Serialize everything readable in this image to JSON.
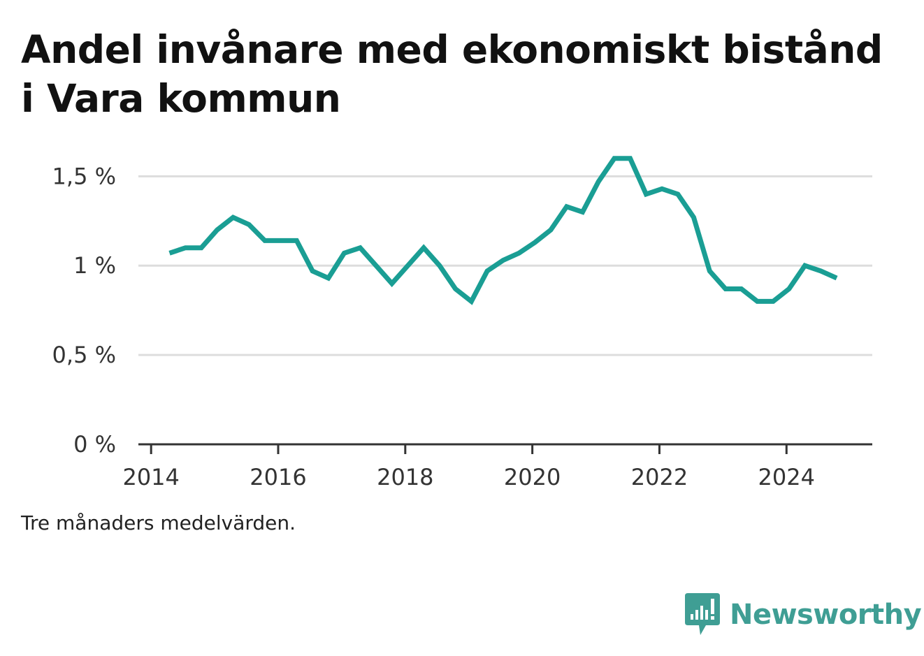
{
  "title": "Andel invånare med ekonomiskt bistånd i Vara kommun",
  "note": "Tre månaders medelvärden.",
  "brand": {
    "name": "Newsworthy",
    "logo_icon": "bar-chart-speech-bubble-icon"
  },
  "colors": {
    "line": "#1a9e94",
    "grid": "#dddddd",
    "axis": "#333333",
    "text": "#333333",
    "brand": "#3f9e94"
  },
  "chart_data": {
    "type": "line",
    "title": "Andel invånare med ekonomiskt bistånd i Vara kommun",
    "xlabel": "",
    "ylabel": "",
    "x_ticks": [
      {
        "value": 2014,
        "label": "2014"
      },
      {
        "value": 2016,
        "label": "2016"
      },
      {
        "value": 2018,
        "label": "2018"
      },
      {
        "value": 2020,
        "label": "2020"
      },
      {
        "value": 2022,
        "label": "2022"
      },
      {
        "value": 2024,
        "label": "2024"
      }
    ],
    "y_ticks": [
      {
        "value": 0,
        "label": "0 %"
      },
      {
        "value": 0.5,
        "label": "0,5 %"
      },
      {
        "value": 1,
        "label": "1 %"
      },
      {
        "value": 1.5,
        "label": "1,5 %"
      }
    ],
    "xlim": [
      2013.8,
      2025.35
    ],
    "ylim": [
      0,
      1.65
    ],
    "grid": true,
    "series": [
      {
        "x": [
          2014.29,
          2014.54,
          2014.79,
          2015.04,
          2015.29,
          2015.54,
          2015.79,
          2016.04,
          2016.29,
          2016.54,
          2016.79,
          2017.04,
          2017.29,
          2017.54,
          2017.79,
          2018.04,
          2018.29,
          2018.54,
          2018.79,
          2019.04,
          2019.29,
          2019.54,
          2019.79,
          2020.04,
          2020.29,
          2020.54,
          2020.79,
          2021.04,
          2021.29,
          2021.54,
          2021.79,
          2022.04,
          2022.29,
          2022.54,
          2022.79,
          2023.04,
          2023.29,
          2023.54,
          2023.79,
          2024.04,
          2024.29,
          2024.54,
          2024.79
        ],
        "values": [
          1.07,
          1.1,
          1.1,
          1.2,
          1.27,
          1.23,
          1.14,
          1.14,
          1.14,
          0.97,
          0.93,
          1.07,
          1.1,
          1.0,
          0.9,
          1.0,
          1.1,
          1.0,
          0.87,
          0.8,
          0.97,
          1.03,
          1.07,
          1.13,
          1.2,
          1.33,
          1.3,
          1.47,
          1.6,
          1.6,
          1.4,
          1.43,
          1.4,
          1.27,
          0.97,
          0.87,
          0.87,
          0.8,
          0.8,
          0.87,
          1.0,
          0.97,
          0.93
        ]
      }
    ]
  }
}
